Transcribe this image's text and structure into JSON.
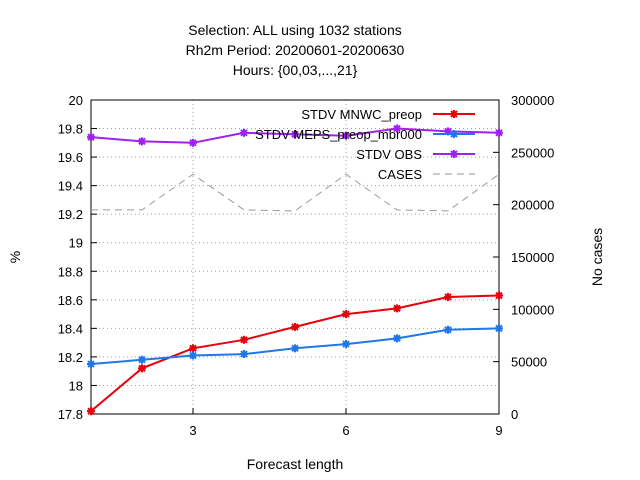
{
  "chart_data": {
    "type": "line",
    "title_lines": [
      "Selection: ALL using  1032 stations",
      "Rh2m   Period: 20200601-20200630",
      "Hours: {00,03,...,21}"
    ],
    "xlabel": "Forecast length",
    "ylabel": "%",
    "y2label": "No cases",
    "xlim": [
      1,
      9
    ],
    "ylim": [
      17.8,
      20
    ],
    "y2lim": [
      0,
      300000
    ],
    "xticks": [
      3,
      6,
      9
    ],
    "yticks": [
      "17.8",
      "18",
      "18.2",
      "18.4",
      "18.6",
      "18.8",
      "19",
      "19.2",
      "19.4",
      "19.6",
      "19.8",
      "20"
    ],
    "y2ticks": [
      "0",
      "50000",
      "100000",
      "150000",
      "200000",
      "250000",
      "300000"
    ],
    "grid": true,
    "legend_position": "top-right",
    "x": [
      1,
      2,
      3,
      4,
      5,
      6,
      7,
      8,
      9
    ],
    "series": [
      {
        "name": "STDV MNWC_preop",
        "axis": "y",
        "color": "#e8000b",
        "style": "solid",
        "marker": "star",
        "values": [
          17.82,
          18.12,
          18.26,
          18.32,
          18.41,
          18.5,
          18.54,
          18.62,
          18.63
        ]
      },
      {
        "name": "STDV MEPS_preop_mbr000",
        "axis": "y",
        "color": "#1f77e8",
        "style": "solid",
        "marker": "star",
        "values": [
          18.15,
          18.18,
          18.21,
          18.22,
          18.26,
          18.29,
          18.33,
          18.39,
          18.4
        ]
      },
      {
        "name": "STDV OBS",
        "axis": "y",
        "color": "#a020f0",
        "style": "solid",
        "marker": "star",
        "values": [
          19.74,
          19.71,
          19.7,
          19.77,
          19.76,
          19.75,
          19.8,
          19.78,
          19.77
        ]
      },
      {
        "name": "CASES",
        "axis": "y2",
        "color": "#999999",
        "style": "dashed",
        "marker": "none",
        "values": [
          195000,
          195000,
          229000,
          195000,
          194000,
          229000,
          195000,
          194000,
          229000
        ]
      }
    ]
  }
}
